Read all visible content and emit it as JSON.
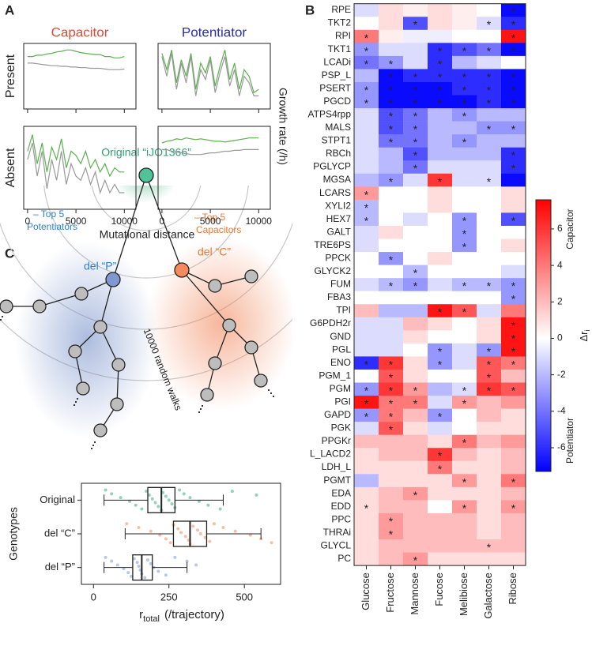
{
  "panel_labels": [
    "A",
    "B",
    "C"
  ],
  "chart_data": [
    {
      "type": "line",
      "column_titles": [
        "Capacitor",
        "Potentiator"
      ],
      "column_title_colors": [
        "#e0483a",
        "#2a2fa8"
      ],
      "row_titles": [
        "Present",
        "Absent"
      ],
      "ylabel": "Growth rate (/h)",
      "xlabel": "Mutational distance",
      "xlim": [
        -400,
        11200
      ],
      "xticks": [
        0,
        5000,
        10000
      ],
      "ylim": [
        0,
        1
      ],
      "x": [
        0,
        500,
        1000,
        1500,
        2000,
        2500,
        3000,
        3500,
        4000,
        4500,
        5000,
        5500,
        6000,
        6500,
        7000,
        7500,
        8000,
        8500,
        9000,
        9500,
        10000
      ],
      "panels": [
        {
          "series": [
            {
              "color": "#5bb04e",
              "values": [
                0.8,
                0.8,
                0.82,
                0.82,
                0.84,
                0.85,
                0.87,
                0.88,
                0.9,
                0.9,
                0.88,
                0.86,
                0.85,
                0.84,
                0.83,
                0.83,
                0.8,
                0.8,
                0.78,
                0.78,
                0.8
              ]
            },
            {
              "color": "#999999",
              "values": [
                0.7,
                0.7,
                0.69,
                0.68,
                0.67,
                0.66,
                0.66,
                0.65,
                0.65,
                0.64,
                0.64,
                0.63,
                0.63,
                0.62,
                0.62,
                0.62,
                0.61,
                0.6,
                0.6,
                0.6,
                0.61
              ]
            }
          ]
        },
        {
          "series": [
            {
              "color": "#5bb04e",
              "values": [
                0.85,
                0.6,
                0.9,
                0.4,
                0.75,
                0.5,
                0.85,
                0.3,
                0.7,
                0.55,
                0.8,
                0.35,
                0.65,
                0.9,
                0.45,
                0.7,
                0.3,
                0.6,
                0.5,
                0.25,
                0.3
              ]
            },
            {
              "color": "#999999",
              "values": [
                0.8,
                0.5,
                0.85,
                0.3,
                0.7,
                0.4,
                0.8,
                0.2,
                0.6,
                0.45,
                0.75,
                0.25,
                0.55,
                0.8,
                0.35,
                0.6,
                0.2,
                0.5,
                0.4,
                0.2,
                0.2
              ]
            }
          ]
        },
        {
          "series": [
            {
              "color": "#5bb04e",
              "values": [
                0.7,
                0.9,
                0.55,
                0.8,
                0.45,
                0.75,
                0.6,
                0.85,
                0.5,
                0.7,
                0.65,
                0.55,
                0.7,
                0.5,
                0.6,
                0.45,
                0.55,
                0.4,
                0.5,
                0.45,
                0.45
              ]
            },
            {
              "color": "#999999",
              "values": [
                0.6,
                0.8,
                0.4,
                0.7,
                0.25,
                0.6,
                0.35,
                0.7,
                0.3,
                0.55,
                0.4,
                0.35,
                0.5,
                0.3,
                0.45,
                0.2,
                0.35,
                0.2,
                0.3,
                0.2,
                0.2
              ]
            }
          ]
        },
        {
          "series": [
            {
              "color": "#5bb04e",
              "values": [
                0.8,
                0.82,
                0.83,
                0.85,
                0.84,
                0.86,
                0.85,
                0.84,
                0.85,
                0.84,
                0.83,
                0.82,
                0.82,
                0.81,
                0.82,
                0.83,
                0.84,
                0.85,
                0.86,
                0.86,
                0.86
              ]
            },
            {
              "color": "#999999",
              "values": [
                0.72,
                0.72,
                0.7,
                0.69,
                0.68,
                0.67,
                0.66,
                0.66,
                0.66,
                0.67,
                0.68,
                0.68,
                0.69,
                0.7,
                0.7,
                0.71,
                0.71,
                0.72,
                0.72,
                0.72,
                0.72
              ]
            }
          ]
        }
      ]
    },
    {
      "type": "heatmap",
      "rows": [
        "RPE",
        "TKT2",
        "RPI",
        "TKT1",
        "LCADi",
        "PSP_L",
        "PSERT",
        "PGCD",
        "ATPS4rpp",
        "MALS",
        "STPT1",
        "RBCh",
        "PGLYCP",
        "MGSA",
        "LCARS",
        "XYLI2",
        "HEX7",
        "GALT",
        "TRE6PS",
        "PPCK",
        "GLYCK2",
        "FUM",
        "FBA3",
        "TPI",
        "G6PDH2r",
        "GND",
        "PGL",
        "ENO",
        "PGM_1",
        "PGM",
        "PGI",
        "GAPD",
        "PGK",
        "PPGKr",
        "L_LACD2",
        "LDH_L",
        "PGMT",
        "EDA",
        "EDD",
        "PPC",
        "THRAi",
        "GLYCL",
        "PC"
      ],
      "columns": [
        "Glucose",
        "Fructose",
        "Mannose",
        "Fucose",
        "Melibiose",
        "Galactose",
        "Ribose"
      ],
      "values": [
        [
          -1,
          1,
          0.5,
          1,
          0.5,
          0,
          -7
        ],
        [
          0,
          1,
          -5,
          1,
          0.5,
          -1,
          -6
        ],
        [
          4,
          0.5,
          -0.5,
          -0.5,
          0,
          0,
          7
        ],
        [
          -3,
          -1,
          -1,
          -6,
          -5,
          -4,
          -7
        ],
        [
          -4,
          -3,
          -1,
          -6,
          -2,
          -1,
          0
        ],
        [
          -2,
          -7,
          -6,
          -6,
          -6,
          -6,
          -7
        ],
        [
          -3,
          -7,
          -7,
          -7,
          -6,
          -6,
          -7
        ],
        [
          -3,
          -7,
          -7,
          -7,
          -7,
          -6,
          -7
        ],
        [
          -1,
          -5,
          -4,
          -2,
          -3,
          -2,
          -2
        ],
        [
          -1,
          -5,
          -4,
          -2,
          -2,
          -3,
          -3
        ],
        [
          -1,
          -4,
          -4,
          -2,
          -3,
          -2,
          -2
        ],
        [
          -1,
          -2,
          -5,
          -2,
          -2,
          -2,
          -6
        ],
        [
          -1,
          -2,
          -4,
          -1,
          -1,
          -1,
          -6
        ],
        [
          -2,
          -3,
          -1,
          6,
          -1,
          -1,
          -7
        ],
        [
          3,
          0,
          0,
          1,
          0,
          0,
          1
        ],
        [
          -2,
          0,
          0,
          1,
          0,
          0,
          1
        ],
        [
          -2,
          0,
          -1,
          0,
          -3,
          0,
          -5
        ],
        [
          -1,
          1,
          0,
          0,
          -3,
          0,
          0
        ],
        [
          -1,
          0,
          0,
          0,
          -3,
          0,
          1
        ],
        [
          0,
          -3,
          0,
          1,
          0,
          0,
          0
        ],
        [
          0,
          0,
          -2,
          0,
          0,
          0,
          -1
        ],
        [
          -1,
          -2,
          -3,
          -1,
          -2,
          -2,
          -3
        ],
        [
          0,
          0,
          0,
          0,
          0,
          0,
          -3
        ],
        [
          2,
          -2,
          -2,
          7,
          5,
          -1,
          4
        ],
        [
          -1,
          -1,
          2,
          1,
          0,
          1,
          7
        ],
        [
          -1,
          -1,
          1,
          0,
          0,
          1,
          7
        ],
        [
          -1,
          -1,
          0,
          -3,
          -1,
          -3,
          7
        ],
        [
          -6,
          6,
          1,
          -3,
          -1,
          5,
          4
        ],
        [
          0,
          5,
          1,
          0,
          0,
          5,
          2
        ],
        [
          -3,
          6,
          3,
          -2,
          -1,
          6,
          5
        ],
        [
          7,
          4,
          4,
          -1,
          3,
          2,
          3
        ],
        [
          -3,
          4,
          2,
          -3,
          0,
          2,
          1
        ],
        [
          -1,
          5,
          1,
          -1,
          0,
          1,
          1
        ],
        [
          2,
          2,
          2,
          1,
          4,
          2,
          3
        ],
        [
          1,
          2,
          2,
          6,
          2,
          1,
          2
        ],
        [
          1,
          1,
          1,
          4,
          1,
          1,
          2
        ],
        [
          -2,
          1,
          1,
          1,
          3,
          1,
          4
        ],
        [
          1,
          2,
          3,
          1,
          1,
          1,
          2
        ],
        [
          1,
          2,
          2,
          0,
          3,
          1,
          3
        ],
        [
          1,
          3,
          2,
          2,
          2,
          1,
          2
        ],
        [
          1,
          3,
          2,
          2,
          2,
          1,
          2
        ],
        [
          1,
          2,
          2,
          2,
          2,
          2,
          2
        ],
        [
          1,
          2,
          3,
          1,
          1,
          1,
          1
        ]
      ],
      "significant": [
        [
          0,
          0,
          0,
          0,
          0,
          0,
          1
        ],
        [
          0,
          0,
          1,
          0,
          0,
          1,
          1
        ],
        [
          1,
          0,
          0,
          0,
          0,
          0,
          1
        ],
        [
          1,
          0,
          0,
          1,
          1,
          1,
          1
        ],
        [
          1,
          1,
          0,
          1,
          0,
          0,
          0
        ],
        [
          0,
          1,
          1,
          1,
          1,
          1,
          1
        ],
        [
          1,
          1,
          1,
          1,
          1,
          1,
          1
        ],
        [
          1,
          1,
          1,
          1,
          1,
          1,
          1
        ],
        [
          0,
          1,
          1,
          0,
          1,
          0,
          0
        ],
        [
          0,
          1,
          1,
          0,
          0,
          1,
          1
        ],
        [
          0,
          1,
          1,
          0,
          1,
          0,
          0
        ],
        [
          0,
          0,
          1,
          0,
          0,
          0,
          1
        ],
        [
          0,
          0,
          1,
          0,
          0,
          0,
          1
        ],
        [
          0,
          1,
          0,
          1,
          0,
          1,
          0
        ],
        [
          1,
          0,
          0,
          0,
          0,
          0,
          0
        ],
        [
          1,
          0,
          0,
          0,
          0,
          0,
          0
        ],
        [
          1,
          0,
          0,
          0,
          1,
          0,
          1
        ],
        [
          0,
          0,
          0,
          0,
          1,
          0,
          0
        ],
        [
          0,
          0,
          0,
          0,
          1,
          0,
          0
        ],
        [
          0,
          1,
          0,
          0,
          0,
          0,
          0
        ],
        [
          0,
          0,
          1,
          0,
          0,
          0,
          0
        ],
        [
          0,
          1,
          1,
          0,
          1,
          1,
          1
        ],
        [
          0,
          0,
          0,
          0,
          0,
          0,
          1
        ],
        [
          0,
          0,
          0,
          1,
          1,
          0,
          0
        ],
        [
          0,
          0,
          0,
          0,
          0,
          0,
          1
        ],
        [
          0,
          0,
          0,
          0,
          0,
          0,
          1
        ],
        [
          0,
          0,
          0,
          1,
          0,
          1,
          1
        ],
        [
          1,
          1,
          0,
          1,
          0,
          1,
          1
        ],
        [
          0,
          1,
          0,
          0,
          0,
          1,
          0
        ],
        [
          1,
          1,
          1,
          0,
          1,
          1,
          1
        ],
        [
          1,
          1,
          1,
          0,
          1,
          0,
          0
        ],
        [
          1,
          1,
          0,
          1,
          0,
          0,
          0
        ],
        [
          0,
          1,
          0,
          0,
          0,
          0,
          0
        ],
        [
          0,
          0,
          0,
          0,
          1,
          0,
          0
        ],
        [
          0,
          0,
          0,
          1,
          0,
          0,
          0
        ],
        [
          0,
          0,
          0,
          1,
          0,
          0,
          0
        ],
        [
          0,
          0,
          0,
          0,
          1,
          0,
          1
        ],
        [
          0,
          0,
          1,
          0,
          0,
          0,
          0
        ],
        [
          1,
          0,
          0,
          0,
          1,
          0,
          1
        ],
        [
          0,
          1,
          0,
          0,
          0,
          0,
          0
        ],
        [
          0,
          1,
          0,
          0,
          0,
          0,
          0
        ],
        [
          0,
          0,
          0,
          0,
          0,
          1,
          0
        ],
        [
          0,
          0,
          1,
          0,
          0,
          0,
          0
        ]
      ],
      "sig_label": "*",
      "clim": [
        -7.3,
        7.6
      ],
      "cticks": [
        -6,
        -4,
        -2,
        0,
        2,
        4,
        6
      ],
      "colors": {
        "negative": "#0000ff",
        "zero": "#ffffff",
        "positive": "#ff0000"
      },
      "cbar_labels": [
        "Capacitor",
        "Potentiator"
      ],
      "cbar_title": "Δr",
      "cbar_title_sub": "i"
    },
    {
      "type": "box",
      "categories": [
        "Original",
        "del “C”",
        "del “P”"
      ],
      "colors": [
        "#4fb38a",
        "#f0956a",
        "#8da2cf"
      ],
      "whisker_low": [
        35,
        105,
        35
      ],
      "q1": [
        180,
        265,
        130
      ],
      "median": [
        225,
        320,
        160
      ],
      "q3": [
        270,
        375,
        195
      ],
      "whisker_high": [
        430,
        555,
        310
      ],
      "points": [
        [
          40,
          60,
          90,
          120,
          140,
          160,
          175,
          185,
          195,
          205,
          215,
          225,
          230,
          240,
          250,
          260,
          270,
          285,
          300,
          320,
          350,
          380,
          420,
          460,
          540
        ],
        [
          110,
          150,
          190,
          220,
          240,
          255,
          265,
          280,
          290,
          305,
          315,
          320,
          330,
          345,
          355,
          370,
          385,
          400,
          430,
          470,
          520,
          555,
          590
        ],
        [
          40,
          60,
          80,
          100,
          115,
          125,
          135,
          145,
          150,
          155,
          160,
          170,
          180,
          190,
          200,
          215,
          240,
          270,
          310,
          340
        ]
      ],
      "xlim": [
        -40,
        620
      ],
      "xticks": [
        0,
        250,
        500
      ],
      "ylabel": "Genotypes",
      "xlabel": "r",
      "xlabel_sub": "total",
      "xlabel_unit": "(/trajectory)"
    }
  ],
  "diagram": {
    "original": "Original “iJO1366”",
    "potentiators_top": "– Top 5",
    "potentiators": "Potentiators",
    "del_p": "del “P”",
    "capacitors_top": "– Top 5",
    "capacitors": "Capacitors",
    "del_c": "del “C”",
    "walks": "10000 random walks"
  }
}
